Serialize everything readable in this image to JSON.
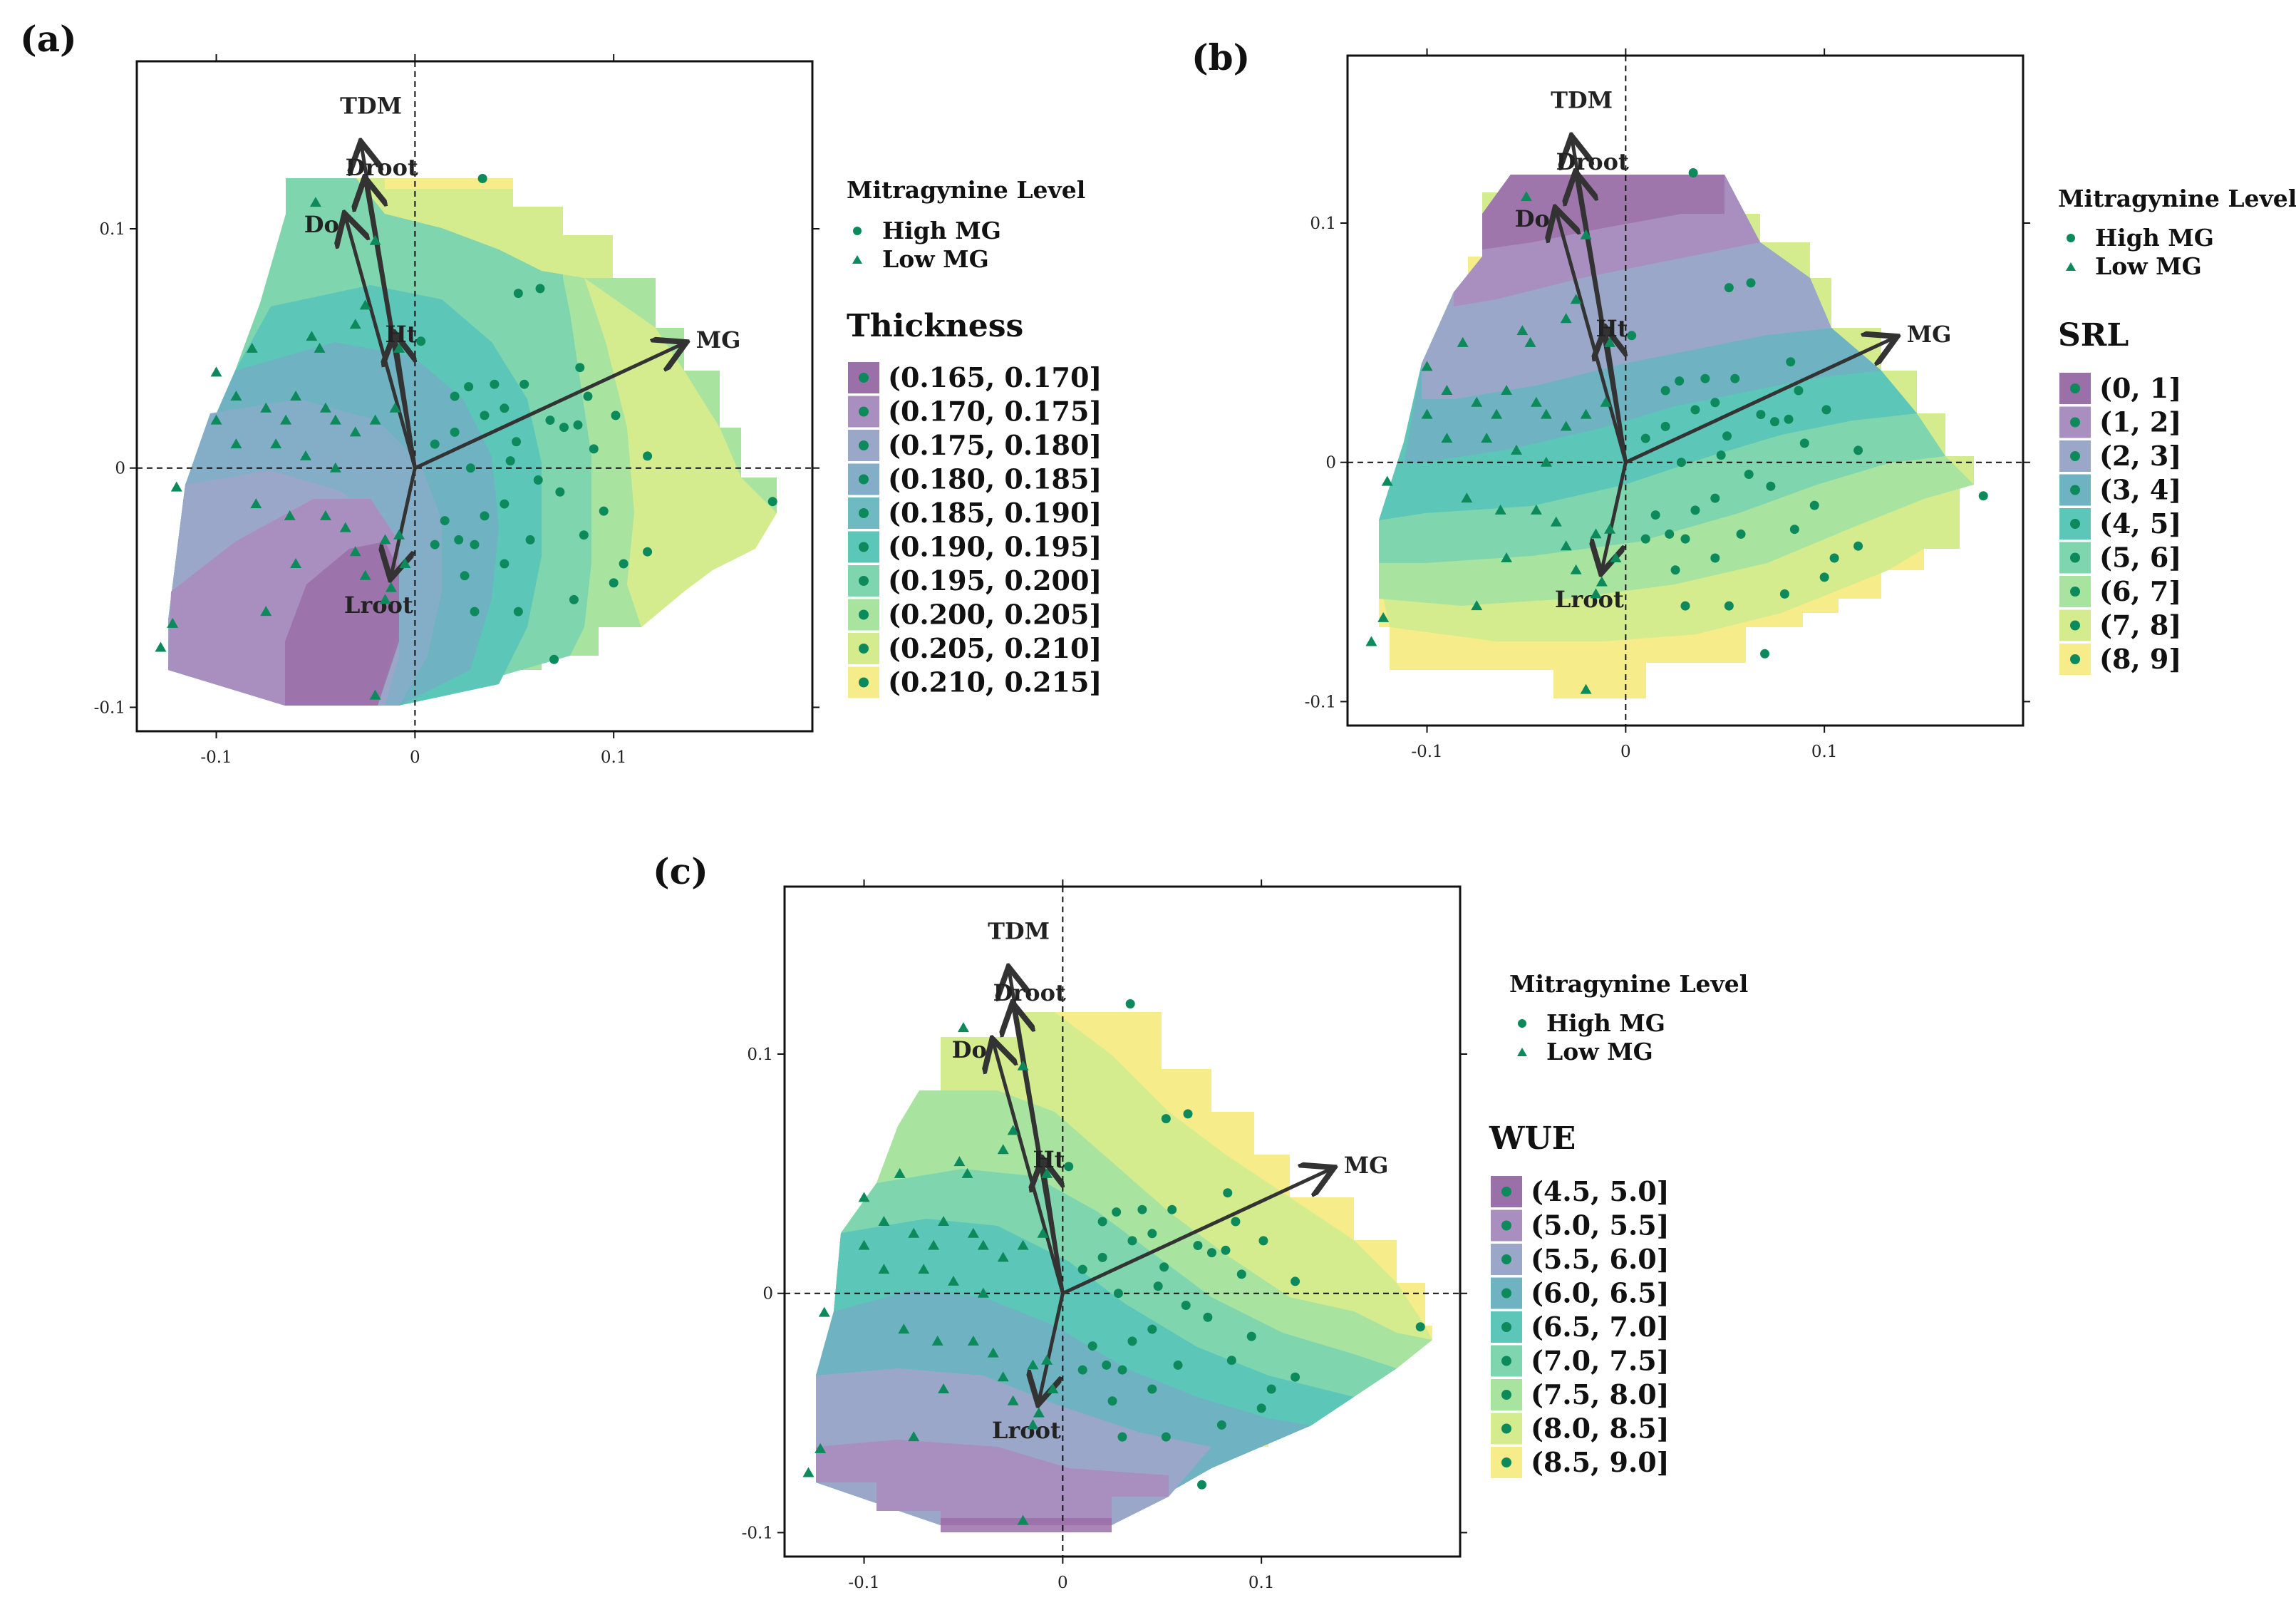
{
  "colors": {
    "point": "#0d8a5c",
    "arrow": "#333333",
    "palette9": [
      "#9b6fa8",
      "#a88fbf",
      "#9ba7c9",
      "#6fb3c2",
      "#5cc6b8",
      "#7fd6ae",
      "#a8e4a0",
      "#d4ec8e",
      "#f6ec8a"
    ],
    "palette10": [
      "#9b6fa8",
      "#a88fbf",
      "#9ba7c9",
      "#84aec8",
      "#6fb9c2",
      "#5cc6b8",
      "#7fd6ae",
      "#a8e4a0",
      "#d4ec8e",
      "#f6ec8a"
    ]
  },
  "panels": [
    {
      "label": "(a)",
      "legend_title": "Thickness"
    },
    {
      "label": "(b)",
      "legend_title": "SRL"
    },
    {
      "label": "(c)",
      "legend_title": "WUE"
    }
  ],
  "shared": {
    "mitragynine_title": "Mitragynine Level",
    "high_label": "High MG",
    "low_label": "Low MG"
  },
  "chart_data": [
    {
      "type": "scatter",
      "title": "(a)",
      "xlim": [
        -0.14,
        0.2
      ],
      "ylim": [
        -0.11,
        0.17
      ],
      "xticks": [
        -0.1,
        0,
        0.1
      ],
      "yticks": [
        -0.1,
        0,
        0.1
      ],
      "xtick_labels": [
        "-0.1",
        "0",
        "0.1"
      ],
      "ytick_labels": [
        "-0.1",
        "0",
        "0.1"
      ],
      "legend_title": "Thickness",
      "legend_items": [
        "(0.165, 0.170]",
        "(0.170, 0.175]",
        "(0.175, 0.180]",
        "(0.180, 0.185]",
        "(0.185, 0.190]",
        "(0.190, 0.195]",
        "(0.195, 0.200]",
        "(0.200, 0.205]",
        "(0.205, 0.210]",
        "(0.210, 0.215]"
      ],
      "vectors": [
        {
          "name": "TDM",
          "x": -0.027,
          "y": 0.135
        },
        {
          "name": "Droot",
          "x": -0.025,
          "y": 0.12
        },
        {
          "name": "Do",
          "x": -0.035,
          "y": 0.105
        },
        {
          "name": "Ht",
          "x": -0.01,
          "y": 0.055
        },
        {
          "name": "MG",
          "x": 0.135,
          "y": 0.052
        },
        {
          "name": "Lroot",
          "x": -0.012,
          "y": -0.045
        }
      ],
      "high_mg": [
        [
          0.034,
          0.121
        ],
        [
          0.052,
          0.073
        ],
        [
          0.063,
          0.075
        ],
        [
          0.087,
          0.03
        ],
        [
          0.117,
          0.005
        ],
        [
          0.18,
          -0.014
        ],
        [
          0.003,
          0.053
        ],
        [
          0.027,
          0.034
        ],
        [
          0.04,
          0.035
        ],
        [
          0.055,
          0.035
        ],
        [
          0.083,
          0.042
        ],
        [
          0.045,
          0.025
        ],
        [
          0.068,
          0.02
        ],
        [
          0.075,
          0.017
        ],
        [
          0.101,
          0.022
        ],
        [
          0.02,
          0.015
        ],
        [
          0.035,
          0.022
        ],
        [
          0.051,
          0.011
        ],
        [
          0.082,
          0.018
        ],
        [
          0.09,
          0.008
        ],
        [
          0.028,
          0.0
        ],
        [
          0.048,
          0.003
        ],
        [
          0.062,
          -0.005
        ],
        [
          0.073,
          -0.01
        ],
        [
          0.095,
          -0.018
        ],
        [
          0.045,
          -0.015
        ],
        [
          0.058,
          -0.03
        ],
        [
          0.085,
          -0.028
        ],
        [
          0.01,
          -0.032
        ],
        [
          0.03,
          -0.032
        ],
        [
          0.045,
          -0.04
        ],
        [
          0.105,
          -0.04
        ],
        [
          0.025,
          -0.045
        ],
        [
          0.03,
          -0.06
        ],
        [
          0.052,
          -0.06
        ],
        [
          0.08,
          -0.055
        ],
        [
          0.1,
          -0.048
        ],
        [
          0.117,
          -0.035
        ],
        [
          0.07,
          -0.08
        ],
        [
          0.015,
          -0.022
        ],
        [
          0.022,
          -0.03
        ],
        [
          0.01,
          0.01
        ],
        [
          0.02,
          0.03
        ],
        [
          0.035,
          -0.02
        ]
      ],
      "low_mg": [
        [
          -0.05,
          0.111
        ],
        [
          -0.02,
          0.095
        ],
        [
          -0.025,
          0.068
        ],
        [
          -0.008,
          0.05
        ],
        [
          -0.052,
          0.055
        ],
        [
          -0.082,
          0.05
        ],
        [
          -0.1,
          0.04
        ],
        [
          -0.048,
          0.05
        ],
        [
          -0.09,
          0.03
        ],
        [
          -0.06,
          0.03
        ],
        [
          -0.075,
          0.025
        ],
        [
          -0.045,
          0.025
        ],
        [
          -0.065,
          0.02
        ],
        [
          -0.04,
          0.02
        ],
        [
          -0.07,
          0.01
        ],
        [
          -0.03,
          0.015
        ],
        [
          -0.055,
          0.005
        ],
        [
          -0.02,
          0.02
        ],
        [
          -0.01,
          0.025
        ],
        [
          -0.12,
          -0.008
        ],
        [
          -0.063,
          -0.02
        ],
        [
          -0.045,
          -0.02
        ],
        [
          -0.08,
          -0.015
        ],
        [
          -0.035,
          -0.025
        ],
        [
          -0.015,
          -0.03
        ],
        [
          -0.005,
          -0.04
        ],
        [
          -0.012,
          -0.05
        ],
        [
          -0.015,
          -0.055
        ],
        [
          -0.075,
          -0.06
        ],
        [
          -0.122,
          -0.065
        ],
        [
          -0.128,
          -0.075
        ],
        [
          -0.02,
          -0.095
        ],
        [
          -0.03,
          -0.035
        ],
        [
          -0.025,
          -0.045
        ],
        [
          -0.06,
          -0.04
        ],
        [
          -0.008,
          -0.028
        ],
        [
          -0.1,
          0.02
        ],
        [
          -0.09,
          0.01
        ],
        [
          -0.04,
          0.0
        ],
        [
          -0.03,
          0.06
        ]
      ]
    },
    {
      "type": "scatter",
      "title": "(b)",
      "xlim": [
        -0.14,
        0.2
      ],
      "ylim": [
        -0.11,
        0.17
      ],
      "xticks": [
        -0.1,
        0,
        0.1
      ],
      "yticks": [
        -0.1,
        0,
        0.1
      ],
      "xtick_labels": [
        "-0.1",
        "0",
        "0.1"
      ],
      "ytick_labels": [
        "-0.1",
        "0",
        "0.1"
      ],
      "legend_title": "SRL",
      "legend_items": [
        "(0, 1]",
        "(1, 2]",
        "(2, 3]",
        "(3, 4]",
        "(4, 5]",
        "(5, 6]",
        "(6, 7]",
        "(7, 8]",
        "(8, 9]"
      ],
      "vectors": [
        {
          "name": "TDM",
          "x": -0.027,
          "y": 0.135
        },
        {
          "name": "Droot",
          "x": -0.025,
          "y": 0.12
        },
        {
          "name": "Do",
          "x": -0.035,
          "y": 0.105
        },
        {
          "name": "Ht",
          "x": -0.01,
          "y": 0.055
        },
        {
          "name": "MG",
          "x": 0.135,
          "y": 0.052
        },
        {
          "name": "Lroot",
          "x": -0.012,
          "y": -0.045
        }
      ],
      "high_mg": [
        [
          0.034,
          0.121
        ],
        [
          0.052,
          0.073
        ],
        [
          0.063,
          0.075
        ],
        [
          0.087,
          0.03
        ],
        [
          0.117,
          0.005
        ],
        [
          0.18,
          -0.014
        ],
        [
          0.003,
          0.053
        ],
        [
          0.027,
          0.034
        ],
        [
          0.04,
          0.035
        ],
        [
          0.055,
          0.035
        ],
        [
          0.083,
          0.042
        ],
        [
          0.045,
          0.025
        ],
        [
          0.068,
          0.02
        ],
        [
          0.075,
          0.017
        ],
        [
          0.101,
          0.022
        ],
        [
          0.02,
          0.015
        ],
        [
          0.035,
          0.022
        ],
        [
          0.051,
          0.011
        ],
        [
          0.082,
          0.018
        ],
        [
          0.09,
          0.008
        ],
        [
          0.028,
          0.0
        ],
        [
          0.048,
          0.003
        ],
        [
          0.062,
          -0.005
        ],
        [
          0.073,
          -0.01
        ],
        [
          0.095,
          -0.018
        ],
        [
          0.045,
          -0.015
        ],
        [
          0.058,
          -0.03
        ],
        [
          0.085,
          -0.028
        ],
        [
          0.01,
          -0.032
        ],
        [
          0.03,
          -0.032
        ],
        [
          0.045,
          -0.04
        ],
        [
          0.105,
          -0.04
        ],
        [
          0.025,
          -0.045
        ],
        [
          0.03,
          -0.06
        ],
        [
          0.052,
          -0.06
        ],
        [
          0.08,
          -0.055
        ],
        [
          0.1,
          -0.048
        ],
        [
          0.117,
          -0.035
        ],
        [
          0.07,
          -0.08
        ],
        [
          0.015,
          -0.022
        ],
        [
          0.022,
          -0.03
        ],
        [
          0.01,
          0.01
        ],
        [
          0.02,
          0.03
        ],
        [
          0.035,
          -0.02
        ]
      ],
      "low_mg": [
        [
          -0.05,
          0.111
        ],
        [
          -0.02,
          0.095
        ],
        [
          -0.025,
          0.068
        ],
        [
          -0.008,
          0.05
        ],
        [
          -0.052,
          0.055
        ],
        [
          -0.082,
          0.05
        ],
        [
          -0.1,
          0.04
        ],
        [
          -0.048,
          0.05
        ],
        [
          -0.09,
          0.03
        ],
        [
          -0.06,
          0.03
        ],
        [
          -0.075,
          0.025
        ],
        [
          -0.045,
          0.025
        ],
        [
          -0.065,
          0.02
        ],
        [
          -0.04,
          0.02
        ],
        [
          -0.07,
          0.01
        ],
        [
          -0.03,
          0.015
        ],
        [
          -0.055,
          0.005
        ],
        [
          -0.02,
          0.02
        ],
        [
          -0.01,
          0.025
        ],
        [
          -0.12,
          -0.008
        ],
        [
          -0.063,
          -0.02
        ],
        [
          -0.045,
          -0.02
        ],
        [
          -0.08,
          -0.015
        ],
        [
          -0.035,
          -0.025
        ],
        [
          -0.015,
          -0.03
        ],
        [
          -0.005,
          -0.04
        ],
        [
          -0.012,
          -0.05
        ],
        [
          -0.015,
          -0.055
        ],
        [
          -0.075,
          -0.06
        ],
        [
          -0.122,
          -0.065
        ],
        [
          -0.128,
          -0.075
        ],
        [
          -0.02,
          -0.095
        ],
        [
          -0.03,
          -0.035
        ],
        [
          -0.025,
          -0.045
        ],
        [
          -0.06,
          -0.04
        ],
        [
          -0.008,
          -0.028
        ],
        [
          -0.1,
          0.02
        ],
        [
          -0.09,
          0.01
        ],
        [
          -0.04,
          0.0
        ],
        [
          -0.03,
          0.06
        ]
      ]
    },
    {
      "type": "scatter",
      "title": "(c)",
      "xlim": [
        -0.14,
        0.2
      ],
      "ylim": [
        -0.11,
        0.17
      ],
      "xticks": [
        -0.1,
        0,
        0.1
      ],
      "yticks": [
        -0.1,
        0,
        0.1
      ],
      "xtick_labels": [
        "-0.1",
        "0",
        "0.1"
      ],
      "ytick_labels": [
        "-0.1",
        "0",
        "0.1"
      ],
      "legend_title": "WUE",
      "legend_items": [
        "(4.5, 5.0]",
        "(5.0, 5.5]",
        "(5.5, 6.0]",
        "(6.0, 6.5]",
        "(6.5, 7.0]",
        "(7.0, 7.5]",
        "(7.5, 8.0]",
        "(8.0, 8.5]",
        "(8.5, 9.0]"
      ],
      "vectors": [
        {
          "name": "TDM",
          "x": -0.027,
          "y": 0.135
        },
        {
          "name": "Droot",
          "x": -0.025,
          "y": 0.12
        },
        {
          "name": "Do",
          "x": -0.035,
          "y": 0.105
        },
        {
          "name": "Ht",
          "x": -0.01,
          "y": 0.055
        },
        {
          "name": "MG",
          "x": 0.135,
          "y": 0.052
        },
        {
          "name": "Lroot",
          "x": -0.012,
          "y": -0.045
        }
      ],
      "high_mg": [
        [
          0.034,
          0.121
        ],
        [
          0.052,
          0.073
        ],
        [
          0.063,
          0.075
        ],
        [
          0.087,
          0.03
        ],
        [
          0.117,
          0.005
        ],
        [
          0.18,
          -0.014
        ],
        [
          0.003,
          0.053
        ],
        [
          0.027,
          0.034
        ],
        [
          0.04,
          0.035
        ],
        [
          0.055,
          0.035
        ],
        [
          0.083,
          0.042
        ],
        [
          0.045,
          0.025
        ],
        [
          0.068,
          0.02
        ],
        [
          0.075,
          0.017
        ],
        [
          0.101,
          0.022
        ],
        [
          0.02,
          0.015
        ],
        [
          0.035,
          0.022
        ],
        [
          0.051,
          0.011
        ],
        [
          0.082,
          0.018
        ],
        [
          0.09,
          0.008
        ],
        [
          0.028,
          0.0
        ],
        [
          0.048,
          0.003
        ],
        [
          0.062,
          -0.005
        ],
        [
          0.073,
          -0.01
        ],
        [
          0.095,
          -0.018
        ],
        [
          0.045,
          -0.015
        ],
        [
          0.058,
          -0.03
        ],
        [
          0.085,
          -0.028
        ],
        [
          0.01,
          -0.032
        ],
        [
          0.03,
          -0.032
        ],
        [
          0.045,
          -0.04
        ],
        [
          0.105,
          -0.04
        ],
        [
          0.025,
          -0.045
        ],
        [
          0.03,
          -0.06
        ],
        [
          0.052,
          -0.06
        ],
        [
          0.08,
          -0.055
        ],
        [
          0.1,
          -0.048
        ],
        [
          0.117,
          -0.035
        ],
        [
          0.07,
          -0.08
        ],
        [
          0.015,
          -0.022
        ],
        [
          0.022,
          -0.03
        ],
        [
          0.01,
          0.01
        ],
        [
          0.02,
          0.03
        ],
        [
          0.035,
          -0.02
        ]
      ],
      "low_mg": [
        [
          -0.05,
          0.111
        ],
        [
          -0.02,
          0.095
        ],
        [
          -0.025,
          0.068
        ],
        [
          -0.008,
          0.05
        ],
        [
          -0.052,
          0.055
        ],
        [
          -0.082,
          0.05
        ],
        [
          -0.1,
          0.04
        ],
        [
          -0.048,
          0.05
        ],
        [
          -0.09,
          0.03
        ],
        [
          -0.06,
          0.03
        ],
        [
          -0.075,
          0.025
        ],
        [
          -0.045,
          0.025
        ],
        [
          -0.065,
          0.02
        ],
        [
          -0.04,
          0.02
        ],
        [
          -0.07,
          0.01
        ],
        [
          -0.03,
          0.015
        ],
        [
          -0.055,
          0.005
        ],
        [
          -0.02,
          0.02
        ],
        [
          -0.01,
          0.025
        ],
        [
          -0.12,
          -0.008
        ],
        [
          -0.063,
          -0.02
        ],
        [
          -0.045,
          -0.02
        ],
        [
          -0.08,
          -0.015
        ],
        [
          -0.035,
          -0.025
        ],
        [
          -0.015,
          -0.03
        ],
        [
          -0.005,
          -0.04
        ],
        [
          -0.012,
          -0.05
        ],
        [
          -0.015,
          -0.055
        ],
        [
          -0.075,
          -0.06
        ],
        [
          -0.122,
          -0.065
        ],
        [
          -0.128,
          -0.075
        ],
        [
          -0.02,
          -0.095
        ],
        [
          -0.03,
          -0.035
        ],
        [
          -0.025,
          -0.045
        ],
        [
          -0.06,
          -0.04
        ],
        [
          -0.008,
          -0.028
        ],
        [
          -0.1,
          0.02
        ],
        [
          -0.09,
          0.01
        ],
        [
          -0.04,
          0.0
        ],
        [
          -0.03,
          0.06
        ]
      ]
    }
  ]
}
